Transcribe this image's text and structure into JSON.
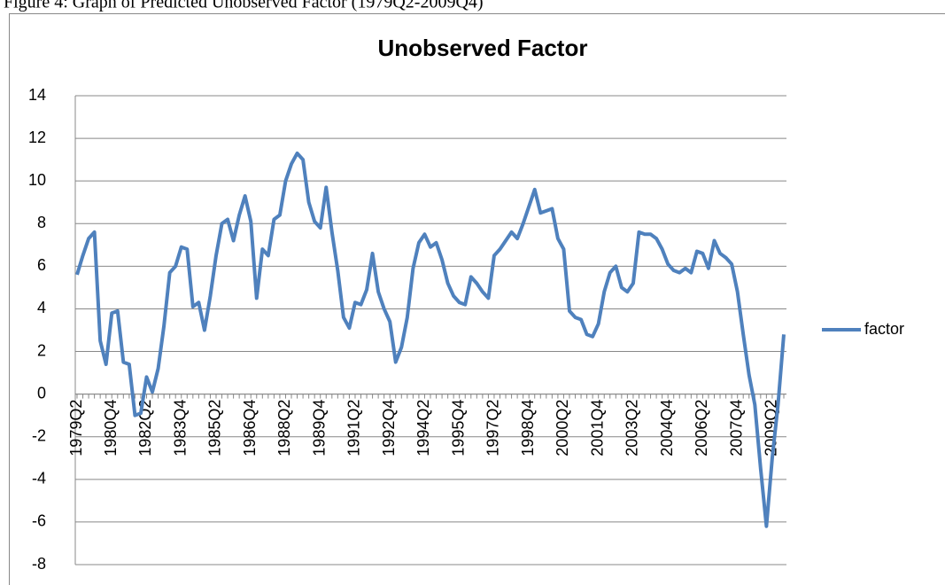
{
  "caption": "Figure 4: Graph of Predicted Unobserved Factor (1979Q2-2009Q4)",
  "chart_data": {
    "type": "line",
    "title": "Unobserved Factor",
    "categories": [
      "1979Q2",
      null,
      null,
      null,
      null,
      null,
      "1980Q4",
      null,
      null,
      null,
      null,
      null,
      "1982Q2",
      null,
      null,
      null,
      null,
      null,
      "1983Q4",
      null,
      null,
      null,
      null,
      null,
      "1985Q2",
      null,
      null,
      null,
      null,
      null,
      "1986Q4",
      null,
      null,
      null,
      null,
      null,
      "1988Q2",
      null,
      null,
      null,
      null,
      null,
      "1989Q4",
      null,
      null,
      null,
      null,
      null,
      "1991Q2",
      null,
      null,
      null,
      null,
      null,
      "1992Q4",
      null,
      null,
      null,
      null,
      null,
      "1994Q2",
      null,
      null,
      null,
      null,
      null,
      "1995Q4",
      null,
      null,
      null,
      null,
      null,
      "1997Q2",
      null,
      null,
      null,
      null,
      null,
      "1998Q4",
      null,
      null,
      null,
      null,
      null,
      "2000Q2",
      null,
      null,
      null,
      null,
      null,
      "2001Q4",
      null,
      null,
      null,
      null,
      null,
      "2003Q2",
      null,
      null,
      null,
      null,
      null,
      "2004Q4",
      null,
      null,
      null,
      null,
      null,
      "2006Q2",
      null,
      null,
      null,
      null,
      null,
      "2007Q4",
      null,
      null,
      null,
      null,
      null,
      "2009Q2",
      null,
      null
    ],
    "series": [
      {
        "name": "factor",
        "color": "#4f81bd",
        "values": [
          5.6,
          6.5,
          7.3,
          7.6,
          2.5,
          1.4,
          3.8,
          3.9,
          1.5,
          1.4,
          -1.0,
          -0.9,
          0.8,
          0.1,
          1.2,
          3.2,
          5.7,
          6.0,
          6.9,
          6.8,
          4.1,
          4.3,
          3.0,
          4.6,
          6.5,
          8.0,
          8.2,
          7.2,
          8.4,
          9.3,
          8.1,
          4.5,
          6.8,
          6.5,
          8.2,
          8.4,
          10.0,
          10.8,
          11.3,
          11.0,
          9.0,
          8.1,
          7.8,
          9.7,
          7.6,
          5.8,
          3.6,
          3.1,
          4.3,
          4.2,
          4.9,
          6.6,
          4.8,
          4.0,
          3.4,
          1.5,
          2.2,
          3.6,
          5.9,
          7.1,
          7.5,
          6.9,
          7.1,
          6.3,
          5.2,
          4.6,
          4.3,
          4.2,
          5.5,
          5.2,
          4.8,
          4.5,
          6.5,
          6.8,
          7.2,
          7.6,
          7.3,
          8.0,
          8.8,
          9.6,
          8.5,
          8.6,
          8.7,
          7.3,
          6.8,
          3.9,
          3.6,
          3.5,
          2.8,
          2.7,
          3.3,
          4.8,
          5.7,
          6.0,
          5.0,
          4.8,
          5.2,
          7.6,
          7.5,
          7.5,
          7.3,
          6.8,
          6.1,
          5.8,
          5.7,
          5.9,
          5.7,
          6.7,
          6.6,
          5.9,
          7.2,
          6.6,
          6.4,
          6.1,
          4.8,
          2.8,
          0.9,
          -0.5,
          -3.5,
          -6.2,
          -3.0,
          -0.5,
          2.8
        ]
      }
    ],
    "ylim": [
      -8,
      14
    ],
    "yticks": [
      -8,
      -6,
      -4,
      -2,
      0,
      2,
      4,
      6,
      8,
      10,
      12,
      14
    ],
    "grid": true,
    "legend": "right"
  }
}
